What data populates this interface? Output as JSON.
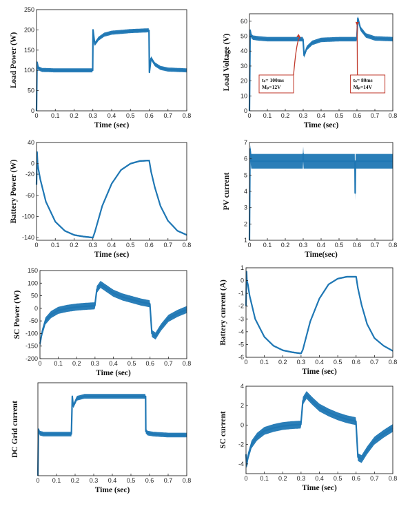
{
  "chart_data": [
    {
      "type": "line",
      "xlabel": "Time (sec)",
      "ylabel": "Load Power (W)",
      "xlim": [
        0,
        0.8
      ],
      "ylim": [
        0,
        250
      ],
      "xticks": [
        "0",
        "0.1",
        "0.2",
        "0.3",
        "0.4",
        "0.5",
        "0.6",
        "0.7",
        "0.8"
      ],
      "yticks": [
        "0",
        "50",
        "100",
        "150",
        "200",
        "250"
      ],
      "series": [
        {
          "color": "#1f77b4",
          "x": [
            0,
            0.003,
            0.01,
            0.03,
            0.1,
            0.2,
            0.299,
            0.301,
            0.31,
            0.33,
            0.36,
            0.4,
            0.5,
            0.599,
            0.601,
            0.61,
            0.63,
            0.66,
            0.7,
            0.8
          ],
          "y": [
            0,
            120,
            105,
            101,
            100,
            100,
            100,
            200,
            165,
            178,
            188,
            193,
            197,
            199,
            95,
            130,
            115,
            106,
            102,
            100
          ],
          "band": 5
        }
      ],
      "annotations": []
    },
    {
      "type": "line",
      "xlabel": "Time (sec)",
      "ylabel": "Load Voltage (V)",
      "xlim": [
        0,
        0.8
      ],
      "ylim": [
        0,
        65
      ],
      "xticks": [
        "0",
        "0.1",
        "0.2",
        "0.3",
        "0.4",
        "0.5",
        "0.6",
        "0.7",
        "0.8"
      ],
      "yticks": [
        "0",
        "10",
        "20",
        "30",
        "40",
        "50",
        "60"
      ],
      "series": [
        {
          "color": "#1f77b4",
          "x": [
            0,
            0.004,
            0.01,
            0.02,
            0.05,
            0.1,
            0.2,
            0.299,
            0.305,
            0.32,
            0.35,
            0.4,
            0.5,
            0.599,
            0.605,
            0.62,
            0.65,
            0.7,
            0.8
          ],
          "y": [
            0,
            54,
            50,
            49,
            48.5,
            48,
            48,
            48,
            37,
            42,
            45.5,
            47.5,
            48,
            48,
            62,
            55,
            50.5,
            48.5,
            48
          ],
          "band": 1.5
        }
      ],
      "annotations": [
        {
          "lines": [
            "tₛ= 100ms",
            "Mₚ=12V"
          ],
          "x": 0.15,
          "y": 18,
          "arrow_to": [
            0.285,
            49
          ]
        },
        {
          "lines": [
            "tₛ= 80ms",
            "Mₚ=14V"
          ],
          "x": 0.66,
          "y": 18,
          "arrow_to": [
            0.6,
            57
          ]
        }
      ]
    },
    {
      "type": "line",
      "xlabel": "Time (sec)",
      "ylabel": "Battery Power (W)",
      "xlim": [
        0,
        0.8
      ],
      "ylim": [
        -145,
        40
      ],
      "xticks": [
        "0",
        "0.1",
        "0.2",
        "0.3",
        "0.4",
        "0.5",
        "0.6",
        "0.7",
        "0.8"
      ],
      "yticks": [
        "-140",
        "-100",
        "-60",
        "-20",
        "0",
        "40"
      ],
      "series": [
        {
          "color": "#1f77b4",
          "x": [
            0,
            0.003,
            0.006,
            0.01,
            0.02,
            0.05,
            0.1,
            0.15,
            0.2,
            0.25,
            0.3,
            0.31,
            0.35,
            0.4,
            0.45,
            0.5,
            0.55,
            0.6,
            0.61,
            0.63,
            0.66,
            0.7,
            0.75,
            0.8
          ],
          "y": [
            -40,
            22,
            0,
            -10,
            -30,
            -72,
            -110,
            -127,
            -135,
            -138,
            -140,
            -130,
            -80,
            -38,
            -12,
            0,
            5,
            6,
            -15,
            -45,
            -80,
            -108,
            -127,
            -135
          ],
          "band": 1.5
        }
      ],
      "annotations": []
    },
    {
      "type": "line",
      "xlabel": "Time(sec)",
      "ylabel": "PV current",
      "xlim": [
        0,
        0.8
      ],
      "ylim": [
        1,
        7
      ],
      "xticks": [
        "0",
        "0.1",
        "0.2",
        "0.3",
        "0.4",
        "0.5",
        "0.6",
        "0.7",
        "0.8"
      ],
      "yticks": [
        "1",
        "2",
        "3",
        "4",
        "5",
        "6",
        "7"
      ],
      "series": [
        {
          "color": "#1f77b4",
          "x": [
            0,
            0.003,
            0.01,
            0.1,
            0.2,
            0.299,
            0.3,
            0.301,
            0.4,
            0.5,
            0.589,
            0.59,
            0.592,
            0.6,
            0.7,
            0.8
          ],
          "y": [
            1,
            6.6,
            5.85,
            5.85,
            5.85,
            5.85,
            6.3,
            5.85,
            5.85,
            5.85,
            5.85,
            3.9,
            5.85,
            5.85,
            5.85,
            5.85
          ],
          "band": 0.45
        }
      ],
      "annotations": []
    },
    {
      "type": "line",
      "xlabel": "Time (sec)",
      "ylabel": "SC Power (W)",
      "xlim": [
        0,
        0.8
      ],
      "ylim": [
        -200,
        150
      ],
      "xticks": [
        "0",
        "0.1",
        "0.2",
        "0.3",
        "0.4",
        "0.5",
        "0.6",
        "0.7",
        "0.8"
      ],
      "yticks": [
        "-200",
        "-150",
        "-100",
        "-50",
        "0",
        "50",
        "100",
        "150"
      ],
      "series": [
        {
          "color": "#1f77b4",
          "x": [
            0,
            0.003,
            0.01,
            0.03,
            0.06,
            0.1,
            0.15,
            0.2,
            0.25,
            0.299,
            0.31,
            0.33,
            0.36,
            0.4,
            0.45,
            0.5,
            0.55,
            0.599,
            0.61,
            0.63,
            0.66,
            0.7,
            0.75,
            0.8
          ],
          "y": [
            -140,
            -130,
            -100,
            -50,
            -25,
            -8,
            0,
            5,
            8,
            10,
            75,
            95,
            80,
            60,
            45,
            35,
            25,
            18,
            -100,
            -110,
            -75,
            -40,
            -20,
            -5
          ],
          "band": 14
        }
      ],
      "annotations": []
    },
    {
      "type": "line",
      "xlabel": "Time (sec)",
      "ylabel": "Battery current (A)",
      "xlim": [
        0,
        0.8
      ],
      "ylim": [
        -6,
        1
      ],
      "xticks": [
        "0",
        "0.1",
        "0.2",
        "0.3",
        "0.4",
        "0.5",
        "0.6",
        "0.7",
        "0.8"
      ],
      "yticks": [
        "-6",
        "-5",
        "-4",
        "-3",
        "-2",
        "-1",
        "0",
        "1"
      ],
      "series": [
        {
          "color": "#1f77b4",
          "x": [
            0,
            0.003,
            0.005,
            0.01,
            0.02,
            0.05,
            0.1,
            0.15,
            0.2,
            0.25,
            0.3,
            0.31,
            0.35,
            0.4,
            0.45,
            0.5,
            0.55,
            0.6,
            0.61,
            0.63,
            0.66,
            0.7,
            0.75,
            0.8
          ],
          "y": [
            -2,
            0.7,
            0,
            -0.3,
            -1.2,
            -3,
            -4.4,
            -5.1,
            -5.45,
            -5.6,
            -5.7,
            -5.4,
            -3.2,
            -1.4,
            -0.3,
            0.15,
            0.3,
            0.3,
            -0.6,
            -1.9,
            -3.4,
            -4.5,
            -5.1,
            -5.5
          ],
          "band": 0.06
        }
      ],
      "annotations": []
    },
    {
      "type": "line",
      "xlabel": "Time (sec)",
      "ylabel": "DC Grid current",
      "xlim": [
        0,
        0.8
      ],
      "ylim": [
        0,
        4.8
      ],
      "xticks": [
        "0",
        "0.1",
        "0.2",
        "0.3",
        "0.4",
        "0.5",
        "0.6",
        "0.7",
        "0.8"
      ],
      "yticks": [],
      "series": [
        {
          "color": "#1f77b4",
          "x": [
            0,
            0.003,
            0.01,
            0.03,
            0.1,
            0.18,
            0.185,
            0.19,
            0.21,
            0.25,
            0.3,
            0.4,
            0.5,
            0.579,
            0.58,
            0.59,
            0.62,
            0.7,
            0.8
          ],
          "y": [
            0,
            2.4,
            2.2,
            2.15,
            2.15,
            2.15,
            4.1,
            3.6,
            4.0,
            4.1,
            4.1,
            4.1,
            4.1,
            4.1,
            2.3,
            2.2,
            2.15,
            2.1,
            2.1
          ],
          "band": 0.12
        }
      ],
      "annotations": []
    },
    {
      "type": "line",
      "xlabel": "Time (sec)",
      "ylabel": "SC current",
      "xlim": [
        0,
        0.8
      ],
      "ylim": [
        -5,
        4
      ],
      "xticks": [
        "0",
        "0.1",
        "0.2",
        "0.3",
        "0.4",
        "0.5",
        "0.6",
        "0.7",
        "0.8"
      ],
      "yticks": [
        "-4",
        "-2",
        "0",
        "2",
        "4"
      ],
      "series": [
        {
          "color": "#1f77b4",
          "x": [
            0,
            0.003,
            0.01,
            0.03,
            0.06,
            0.1,
            0.15,
            0.2,
            0.25,
            0.299,
            0.31,
            0.33,
            0.36,
            0.4,
            0.45,
            0.5,
            0.55,
            0.599,
            0.61,
            0.63,
            0.66,
            0.7,
            0.75,
            0.8
          ],
          "y": [
            -3,
            -4.2,
            -3.3,
            -2,
            -1.2,
            -0.6,
            -0.3,
            -0.1,
            0,
            0.05,
            2.5,
            3.1,
            2.5,
            1.8,
            1.3,
            0.9,
            0.6,
            0.4,
            -3.3,
            -3.5,
            -2.6,
            -1.6,
            -0.9,
            -0.3
          ],
          "band": 0.4
        }
      ],
      "annotations": []
    }
  ]
}
